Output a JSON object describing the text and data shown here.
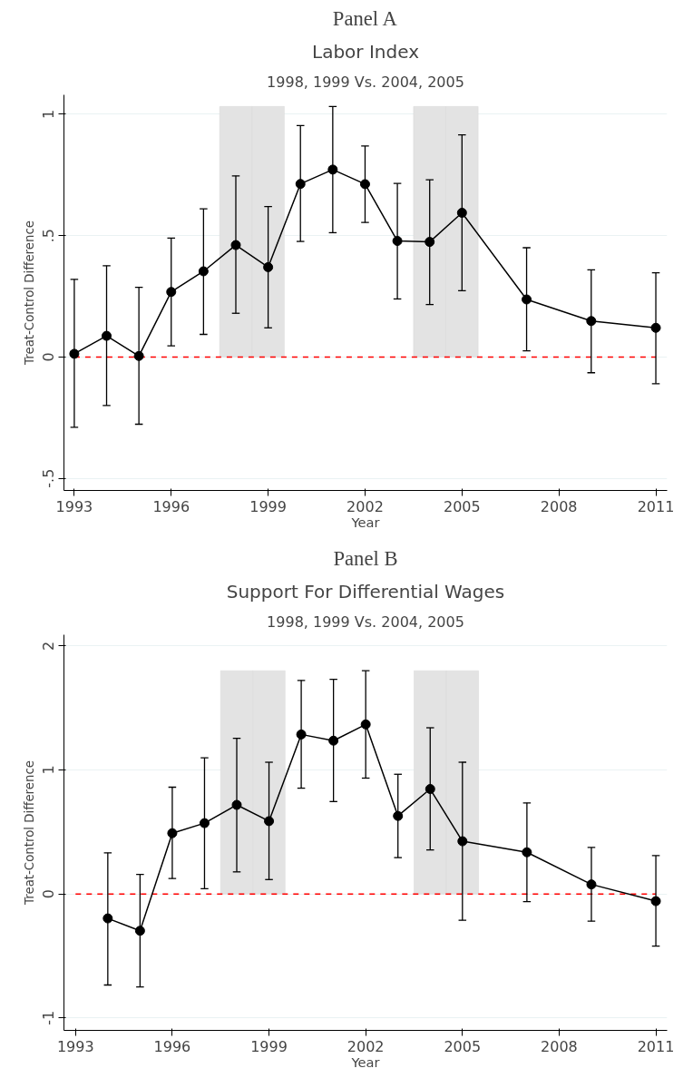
{
  "chart_data": [
    {
      "type": "line",
      "annotations": [
        "Panel A"
      ],
      "title": "Labor Index",
      "subtitle": "1998, 1999 Vs. 2004, 2005",
      "xlabel": "Year",
      "ylabel": "Treat-Control Difference",
      "x": [
        1993,
        1994,
        1995,
        1996,
        1997,
        1998,
        1999,
        2000,
        2001,
        2002,
        2003,
        2004,
        2005,
        2007,
        2009,
        2011
      ],
      "series": [
        {
          "color": "#000000",
          "values": [
            0.013,
            0.087,
            0.004,
            0.268,
            0.353,
            0.461,
            0.37,
            0.713,
            0.772,
            0.712,
            0.478,
            0.474,
            0.594,
            0.237,
            0.148,
            0.12
          ],
          "errors": [
            [
              -0.29,
              0.32
            ],
            [
              -0.2,
              0.376
            ],
            [
              -0.277,
              0.287
            ],
            [
              0.046,
              0.49
            ],
            [
              0.093,
              0.61
            ],
            [
              0.18,
              0.746
            ],
            [
              0.12,
              0.62
            ],
            [
              0.476,
              0.953
            ],
            [
              0.512,
              1.032
            ],
            [
              0.554,
              0.869
            ],
            [
              0.239,
              0.715
            ],
            [
              0.216,
              0.73
            ],
            [
              0.273,
              0.915
            ],
            [
              0.025,
              0.45
            ],
            [
              -0.065,
              0.359
            ],
            [
              -0.11,
              0.347
            ]
          ]
        }
      ],
      "xlim": [
        1992.68,
        2011.35
      ],
      "xticks": [
        1993,
        1996,
        1999,
        2002,
        2005,
        2008,
        2011
      ],
      "ylim": [
        -0.55,
        1.08
      ],
      "yticks": [
        {
          "value": -0.5,
          "label": "-.5"
        },
        0,
        {
          "value": 0.5,
          "label": ".5"
        },
        1
      ],
      "ref_lines": [
        {
          "axis": "y",
          "value": 0,
          "color": "#ff0000",
          "line_style": "dashed"
        }
      ],
      "bands": [
        {
          "axis": "x",
          "from": 1997.5,
          "to": 1998.5,
          "color": "#e3e3e3"
        },
        {
          "axis": "x",
          "from": 1998.5,
          "to": 1999.5,
          "color": "#e3e3e3"
        },
        {
          "axis": "x",
          "from": 2003.5,
          "to": 2004.5,
          "color": "#e3e3e3"
        },
        {
          "axis": "x",
          "from": 2004.5,
          "to": 2005.5,
          "color": "#e3e3e3"
        }
      ],
      "grid": "y",
      "marker": "circle",
      "line_style": "solid"
    },
    {
      "type": "line",
      "annotations": [
        "Panel B"
      ],
      "title": "Support For Differential Wages",
      "subtitle": "1998, 1999 Vs. 2004, 2005",
      "xlabel": "Year",
      "ylabel": "Treat-Control Difference",
      "x": [
        1994,
        1995,
        1996,
        1997,
        1998,
        1999,
        2000,
        2001,
        2002,
        2003,
        2004,
        2005,
        2007,
        2009,
        2011
      ],
      "series": [
        {
          "color": "#000000",
          "values": [
            -0.197,
            -0.297,
            0.49,
            0.571,
            0.718,
            0.587,
            1.286,
            1.236,
            1.367,
            0.629,
            0.846,
            0.425,
            0.336,
            0.077,
            -0.058
          ],
          "errors": [
            [
              -0.734,
              0.332
            ],
            [
              -0.749,
              0.158
            ],
            [
              0.124,
              0.861
            ],
            [
              0.042,
              1.097
            ],
            [
              0.178,
              1.255
            ],
            [
              0.116,
              1.062
            ],
            [
              0.853,
              1.722
            ],
            [
              0.745,
              1.73
            ],
            [
              0.934,
              1.8
            ],
            [
              0.293,
              0.965
            ],
            [
              0.355,
              1.34
            ],
            [
              -0.212,
              1.062
            ],
            [
              -0.062,
              0.734
            ],
            [
              -0.22,
              0.375
            ],
            [
              -0.421,
              0.309
            ]
          ]
        }
      ],
      "xlim": [
        1992.64,
        2011.35
      ],
      "xticks": [
        1993,
        1996,
        1999,
        2002,
        2005,
        2008,
        2011
      ],
      "ylim": [
        -1.1,
        2.09
      ],
      "yticks": [
        -1,
        0,
        1,
        2
      ],
      "ref_lines": [
        {
          "axis": "y",
          "value": 0,
          "color": "#ff0000",
          "line_style": "dashed"
        }
      ],
      "bands": [
        {
          "axis": "x",
          "from": 1997.5,
          "to": 1998.5,
          "color": "#e3e3e3"
        },
        {
          "axis": "x",
          "from": 1998.5,
          "to": 1999.5,
          "color": "#e3e3e3"
        },
        {
          "axis": "x",
          "from": 2003.5,
          "to": 2004.5,
          "color": "#e3e3e3"
        },
        {
          "axis": "x",
          "from": 2004.5,
          "to": 2005.5,
          "color": "#e3e3e3"
        }
      ],
      "grid": "y",
      "marker": "circle",
      "line_style": "solid"
    }
  ]
}
